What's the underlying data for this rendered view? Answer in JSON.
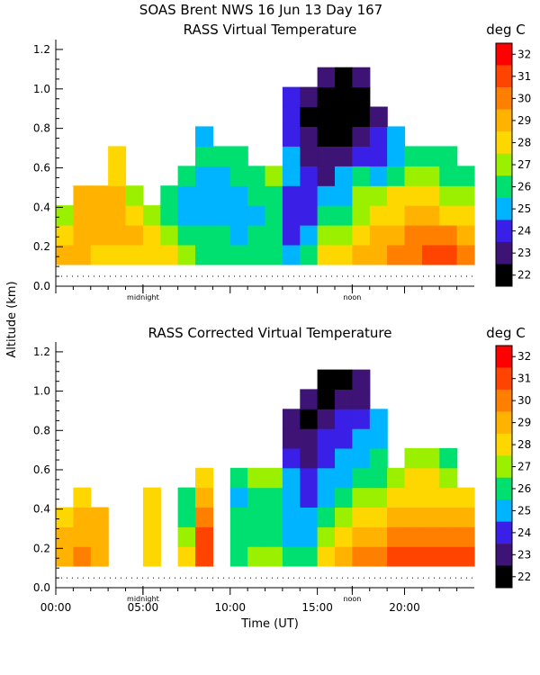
{
  "header": {
    "title": "SOAS Brent NWS  16 Jun 13 Day 167"
  },
  "shared": {
    "ylabel": "Altitude (km)",
    "xlabel": "Time (UT)",
    "unit": "deg C",
    "midnight_label": "midnight",
    "noon_label": "noon",
    "midnight_hour": 5,
    "noon_hour": 17
  },
  "colorbar": {
    "ticks": [
      "32",
      "31",
      "30",
      "29",
      "28",
      "27",
      "26",
      "25",
      "24",
      "23",
      "22"
    ],
    "colors": [
      "#ff0000",
      "#ff4400",
      "#ff8000",
      "#ffb300",
      "#ffd700",
      "#9bf000",
      "#00e070",
      "#00b4ff",
      "#3a1fe6",
      "#3d1375",
      "#000000"
    ]
  },
  "chart_data": [
    {
      "type": "heatmap",
      "title": "RASS Virtual Temperature",
      "ylabel": "Altitude (km)",
      "xlabel": "",
      "xlim": [
        0,
        24
      ],
      "ylim": [
        0,
        1.25
      ],
      "x_ticks": [
        0,
        5,
        10,
        15,
        20
      ],
      "x_tick_labels": [],
      "y_ticks": [
        0.0,
        0.2,
        0.4,
        0.6,
        0.8,
        1.0,
        1.2
      ],
      "y_tick_labels": [
        "0.0",
        "0.2",
        "0.4",
        "0.6",
        "0.8",
        "1.0",
        "1.2"
      ],
      "unit": "deg C",
      "temperature_range": [
        22,
        32
      ],
      "gate_heights_km": [
        0.15,
        0.25,
        0.35,
        0.45,
        0.55,
        0.65,
        0.75,
        0.85,
        0.95,
        1.05,
        1.15,
        1.25
      ],
      "hours_utc": [
        0,
        1,
        2,
        3,
        4,
        5,
        6,
        7,
        8,
        9,
        10,
        11,
        12,
        13,
        14,
        15,
        16,
        17,
        18,
        19,
        20,
        21,
        22,
        23
      ],
      "temperature_degC_by_gate": [
        [
          29,
          29.5,
          28.5,
          28,
          28.5,
          28.5,
          28,
          27.5,
          26.5,
          26,
          26,
          26.5,
          26,
          25.5,
          26,
          28,
          28.5,
          29,
          29.5,
          30,
          30.5,
          31,
          31.5,
          30.5
        ],
        [
          28,
          29,
          29.5,
          29,
          29,
          28,
          27,
          26.5,
          26,
          26,
          25.5,
          26,
          26,
          24.5,
          25.5,
          27,
          27.5,
          28.5,
          29,
          29.5,
          30,
          30,
          30,
          29
        ],
        [
          27,
          29.5,
          29.5,
          29.5,
          28,
          27,
          26,
          25.5,
          25.5,
          25.5,
          25,
          25.5,
          26,
          24.5,
          24,
          26,
          26.5,
          27.5,
          28,
          28.5,
          29.5,
          29,
          28.5,
          28
        ],
        [
          null,
          29.5,
          29,
          29,
          27.5,
          null,
          26.5,
          25.5,
          25,
          25,
          25,
          26,
          26,
          24.5,
          24,
          25.5,
          25.5,
          27,
          27,
          28,
          28.5,
          28,
          27.5,
          27
        ],
        [
          null,
          null,
          null,
          28.5,
          null,
          null,
          null,
          26.5,
          25.5,
          25,
          26,
          26.5,
          27,
          25,
          24,
          23.5,
          25,
          26,
          25,
          26.5,
          27,
          27,
          26.5,
          26
        ],
        [
          null,
          null,
          null,
          28.5,
          null,
          null,
          null,
          null,
          26,
          26,
          26.5,
          null,
          null,
          25,
          23.5,
          23,
          23.5,
          24,
          24.5,
          25.5,
          26.5,
          26.5,
          26.5,
          null
        ],
        [
          null,
          null,
          null,
          null,
          null,
          null,
          null,
          null,
          25.5,
          null,
          null,
          null,
          null,
          24,
          23,
          22.5,
          22.5,
          23,
          24,
          25,
          null,
          null,
          null,
          null
        ],
        [
          null,
          null,
          null,
          null,
          null,
          null,
          null,
          null,
          null,
          null,
          null,
          null,
          null,
          24,
          22.5,
          22.5,
          22.5,
          22.5,
          23.5,
          null,
          null,
          null,
          null,
          null
        ],
        [
          null,
          null,
          null,
          null,
          null,
          null,
          null,
          null,
          null,
          null,
          null,
          null,
          null,
          24.5,
          23,
          22,
          22.5,
          22.5,
          null,
          null,
          null,
          null,
          null,
          null
        ],
        [
          null,
          null,
          null,
          null,
          null,
          null,
          null,
          null,
          null,
          null,
          null,
          null,
          null,
          null,
          null,
          23,
          22,
          23,
          null,
          null,
          null,
          null,
          null,
          null
        ],
        [
          null,
          null,
          null,
          null,
          null,
          null,
          null,
          null,
          null,
          null,
          null,
          null,
          null,
          null,
          null,
          null,
          null,
          null,
          null,
          null,
          null,
          null,
          null,
          null
        ],
        [
          null,
          null,
          null,
          null,
          null,
          null,
          null,
          null,
          null,
          null,
          null,
          null,
          null,
          null,
          null,
          null,
          null,
          null,
          null,
          null,
          null,
          null,
          null,
          null
        ]
      ]
    },
    {
      "type": "heatmap",
      "title": "RASS Corrected Virtual Temperature",
      "ylabel": "Altitude (km)",
      "xlabel": "Time (UT)",
      "xlim": [
        0,
        24
      ],
      "ylim": [
        0,
        1.25
      ],
      "x_ticks": [
        0,
        5,
        10,
        15,
        20
      ],
      "x_tick_labels": [
        "00:00",
        "05:00",
        "10:00",
        "15:00",
        "20:00"
      ],
      "y_ticks": [
        0.0,
        0.2,
        0.4,
        0.6,
        0.8,
        1.0,
        1.2
      ],
      "y_tick_labels": [
        "0.0",
        "0.2",
        "0.4",
        "0.6",
        "0.8",
        "1.0",
        "1.2"
      ],
      "unit": "deg C",
      "temperature_range": [
        22,
        32
      ],
      "gate_heights_km": [
        0.15,
        0.25,
        0.35,
        0.45,
        0.55,
        0.65,
        0.75,
        0.85,
        0.95,
        1.05,
        1.15,
        1.25
      ],
      "hours_utc": [
        0,
        1,
        2,
        3,
        4,
        5,
        6,
        7,
        8,
        9,
        10,
        11,
        12,
        13,
        14,
        15,
        16,
        17,
        18,
        19,
        20,
        21,
        22,
        23
      ],
      "temperature_degC_by_gate": [
        [
          29.5,
          30,
          29.5,
          null,
          null,
          28.5,
          null,
          28,
          31,
          null,
          26.5,
          27,
          27,
          26,
          26.5,
          28.5,
          29,
          30,
          30.5,
          31,
          31,
          31.5,
          31.5,
          31
        ],
        [
          29,
          29.5,
          29.5,
          null,
          null,
          28.5,
          null,
          27,
          31,
          null,
          26,
          26.5,
          26.5,
          25.5,
          25.5,
          27,
          28,
          29,
          29.5,
          30,
          30.5,
          30.5,
          30.5,
          30
        ],
        [
          28,
          29.5,
          29,
          null,
          null,
          28,
          null,
          26.5,
          30,
          null,
          26,
          26,
          26,
          25.5,
          25,
          26,
          27,
          28,
          28.5,
          29,
          29.5,
          29.5,
          29.5,
          29
        ],
        [
          null,
          28.5,
          null,
          null,
          null,
          28,
          null,
          26.5,
          29,
          null,
          25.5,
          26,
          26,
          25,
          24.5,
          25.5,
          26,
          27,
          27.5,
          28,
          28.5,
          28.5,
          28.5,
          28
        ],
        [
          null,
          null,
          null,
          null,
          null,
          null,
          null,
          null,
          28,
          null,
          26.5,
          27,
          27.5,
          25,
          24,
          25,
          25.5,
          26,
          26.5,
          27,
          28,
          28,
          27.5,
          null
        ],
        [
          null,
          null,
          null,
          null,
          null,
          null,
          null,
          null,
          null,
          null,
          null,
          null,
          null,
          24.5,
          23.5,
          24.5,
          25,
          25.5,
          26,
          null,
          27,
          27,
          26.5,
          null
        ],
        [
          null,
          null,
          null,
          null,
          null,
          null,
          null,
          null,
          null,
          null,
          null,
          null,
          null,
          23.5,
          23,
          24,
          24.5,
          25,
          25.5,
          null,
          null,
          null,
          null,
          null
        ],
        [
          null,
          null,
          null,
          null,
          null,
          null,
          null,
          null,
          null,
          null,
          null,
          null,
          null,
          23,
          22.5,
          23.5,
          24,
          24.5,
          25,
          null,
          null,
          null,
          null,
          null
        ],
        [
          null,
          null,
          null,
          null,
          null,
          null,
          null,
          null,
          null,
          null,
          null,
          null,
          null,
          null,
          23,
          22.5,
          23,
          23.5,
          null,
          null,
          null,
          null,
          null,
          null
        ],
        [
          null,
          null,
          null,
          null,
          null,
          null,
          null,
          null,
          null,
          null,
          null,
          null,
          null,
          null,
          null,
          22.5,
          22.5,
          23,
          null,
          null,
          null,
          null,
          null,
          null
        ],
        [
          null,
          null,
          null,
          null,
          null,
          null,
          null,
          null,
          null,
          null,
          null,
          null,
          null,
          null,
          null,
          null,
          null,
          null,
          null,
          null,
          null,
          null,
          null,
          null
        ],
        [
          null,
          null,
          null,
          null,
          null,
          null,
          null,
          null,
          null,
          null,
          null,
          null,
          null,
          null,
          null,
          null,
          null,
          null,
          null,
          null,
          null,
          null,
          null,
          null
        ]
      ]
    }
  ]
}
